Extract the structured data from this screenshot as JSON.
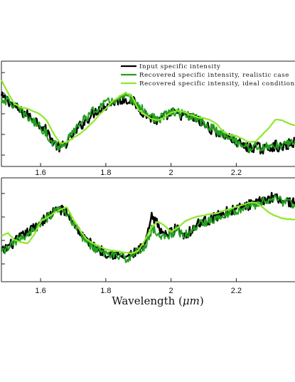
{
  "chart_data": [
    {
      "type": "line",
      "panel": "top",
      "xlim": [
        1.48,
        2.38
      ],
      "x_ticks": [
        1.6,
        1.8,
        2.0,
        2.2
      ],
      "x_tick_labels": [
        "1.6",
        "1.8",
        "2",
        "2.2"
      ],
      "grid": false,
      "legend_position": "top-right",
      "x": [
        1.48,
        1.5,
        1.52,
        1.54,
        1.56,
        1.58,
        1.6,
        1.62,
        1.64,
        1.66,
        1.68,
        1.7,
        1.72,
        1.74,
        1.76,
        1.78,
        1.8,
        1.82,
        1.84,
        1.86,
        1.88,
        1.9,
        1.92,
        1.94,
        1.96,
        1.98,
        2.0,
        2.02,
        2.04,
        2.06,
        2.08,
        2.1,
        2.12,
        2.14,
        2.16,
        2.18,
        2.2,
        2.22,
        2.24,
        2.26,
        2.28,
        2.3,
        2.32,
        2.34,
        2.36,
        2.38
      ],
      "series": [
        {
          "name": "Input specific intensity",
          "color": "#000000",
          "values": [
            0.66,
            0.63,
            0.57,
            0.52,
            0.49,
            0.45,
            0.4,
            0.33,
            0.23,
            0.17,
            0.23,
            0.3,
            0.38,
            0.44,
            0.5,
            0.55,
            0.58,
            0.61,
            0.63,
            0.64,
            0.63,
            0.56,
            0.5,
            0.46,
            0.42,
            0.47,
            0.51,
            0.5,
            0.48,
            0.47,
            0.44,
            0.4,
            0.36,
            0.33,
            0.3,
            0.27,
            0.23,
            0.2,
            0.17,
            0.19,
            0.16,
            0.18,
            0.2,
            0.17,
            0.21,
            0.23
          ]
        },
        {
          "name": "Recovered specific intensity, realistic case",
          "color": "#22a01e",
          "values": [
            0.64,
            0.62,
            0.58,
            0.52,
            0.47,
            0.42,
            0.38,
            0.3,
            0.22,
            0.19,
            0.24,
            0.32,
            0.41,
            0.47,
            0.52,
            0.57,
            0.6,
            0.62,
            0.64,
            0.66,
            0.64,
            0.57,
            0.52,
            0.47,
            0.44,
            0.48,
            0.52,
            0.51,
            0.49,
            0.47,
            0.45,
            0.41,
            0.37,
            0.34,
            0.31,
            0.28,
            0.24,
            0.2,
            0.17,
            0.2,
            0.17,
            0.19,
            0.21,
            0.18,
            0.22,
            0.24
          ]
        },
        {
          "name": "Recovered specific intensity, ideal conditions",
          "color": "#8ee82a",
          "values": [
            0.82,
            0.7,
            0.59,
            0.56,
            0.55,
            0.52,
            0.49,
            0.43,
            0.31,
            0.22,
            0.23,
            0.27,
            0.31,
            0.36,
            0.42,
            0.49,
            0.55,
            0.62,
            0.66,
            0.7,
            0.67,
            0.54,
            0.49,
            0.45,
            0.44,
            0.47,
            0.51,
            0.53,
            0.52,
            0.49,
            0.47,
            0.46,
            0.44,
            0.4,
            0.33,
            0.3,
            0.29,
            0.26,
            0.23,
            0.24,
            0.3,
            0.37,
            0.45,
            0.44,
            0.41,
            0.39
          ]
        }
      ]
    },
    {
      "type": "line",
      "panel": "bottom",
      "xlim": [
        1.48,
        2.38
      ],
      "x_ticks": [
        1.6,
        1.8,
        2.0,
        2.2
      ],
      "x_tick_labels": [
        "1.6",
        "1.8",
        "2",
        "2.2"
      ],
      "xlabel_prefix": "Wavelength (",
      "xlabel_unit": "μm",
      "xlabel_suffix": ")",
      "grid": false,
      "x": [
        1.48,
        1.5,
        1.52,
        1.54,
        1.56,
        1.58,
        1.6,
        1.62,
        1.64,
        1.66,
        1.68,
        1.7,
        1.72,
        1.74,
        1.76,
        1.78,
        1.8,
        1.82,
        1.84,
        1.86,
        1.88,
        1.9,
        1.92,
        1.94,
        1.96,
        1.98,
        2.0,
        2.02,
        2.04,
        2.06,
        2.08,
        2.1,
        2.12,
        2.14,
        2.16,
        2.18,
        2.2,
        2.22,
        2.24,
        2.26,
        2.28,
        2.3,
        2.32,
        2.34,
        2.36,
        2.38
      ],
      "series": [
        {
          "name": "Input specific intensity",
          "color": "#000000",
          "values": [
            0.28,
            0.34,
            0.38,
            0.43,
            0.47,
            0.52,
            0.57,
            0.62,
            0.67,
            0.7,
            0.66,
            0.58,
            0.48,
            0.4,
            0.35,
            0.31,
            0.28,
            0.27,
            0.25,
            0.24,
            0.26,
            0.3,
            0.34,
            0.62,
            0.55,
            0.44,
            0.48,
            0.52,
            0.45,
            0.49,
            0.55,
            0.58,
            0.6,
            0.63,
            0.66,
            0.68,
            0.7,
            0.72,
            0.74,
            0.75,
            0.78,
            0.8,
            0.83,
            0.78,
            0.77,
            0.76
          ]
        },
        {
          "name": "Recovered specific intensity, realistic case",
          "color": "#22a01e",
          "values": [
            0.27,
            0.33,
            0.37,
            0.42,
            0.46,
            0.51,
            0.56,
            0.61,
            0.66,
            0.69,
            0.65,
            0.57,
            0.47,
            0.39,
            0.34,
            0.3,
            0.27,
            0.26,
            0.24,
            0.23,
            0.25,
            0.29,
            0.33,
            0.5,
            0.48,
            0.42,
            0.46,
            0.5,
            0.44,
            0.48,
            0.54,
            0.57,
            0.59,
            0.62,
            0.65,
            0.67,
            0.69,
            0.71,
            0.73,
            0.74,
            0.77,
            0.79,
            0.81,
            0.77,
            0.76,
            0.75
          ]
        },
        {
          "name": "Recovered specific intensity, ideal conditions",
          "color": "#8ee82a",
          "values": [
            0.44,
            0.47,
            0.4,
            0.38,
            0.37,
            0.45,
            0.58,
            0.62,
            0.66,
            0.69,
            0.72,
            0.6,
            0.5,
            0.41,
            0.37,
            0.34,
            0.31,
            0.3,
            0.29,
            0.28,
            0.27,
            0.3,
            0.4,
            0.52,
            0.58,
            0.54,
            0.48,
            0.52,
            0.57,
            0.61,
            0.63,
            0.64,
            0.65,
            0.66,
            0.68,
            0.7,
            0.72,
            0.74,
            0.76,
            0.76,
            0.72,
            0.67,
            0.63,
            0.61,
            0.6,
            0.6
          ]
        }
      ]
    }
  ]
}
